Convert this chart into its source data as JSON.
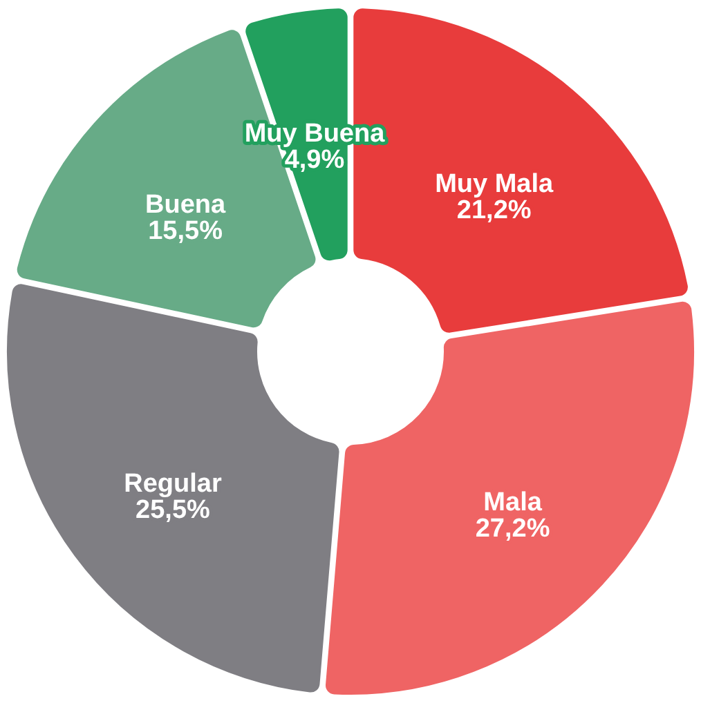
{
  "chart_data": {
    "type": "donut",
    "categories": [
      "Muy Mala",
      "Mala",
      "Regular",
      "Buena",
      "Muy Buena"
    ],
    "values": [
      21.2,
      27.2,
      25.5,
      15.5,
      4.9
    ],
    "colors": [
      "#e83c3c",
      "#ef6464",
      "#7f7e83",
      "#67ab87",
      "#22a05e"
    ],
    "value_labels": [
      "21,2%",
      "27,2%",
      "25,5%",
      "15,5%",
      "4,9%"
    ]
  }
}
